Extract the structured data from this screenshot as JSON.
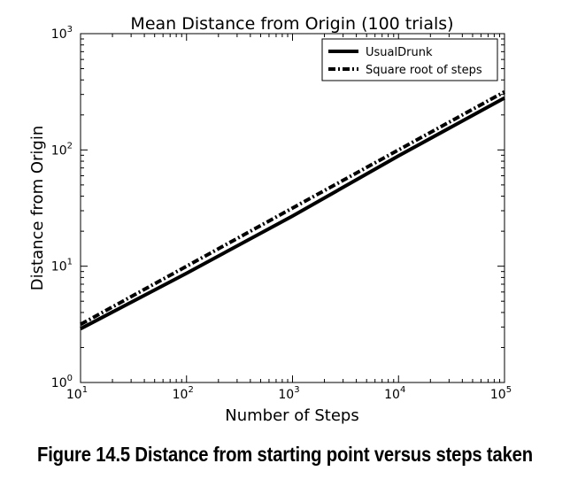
{
  "caption": "Figure 14.5 Distance from starting point versus steps taken",
  "chart_data": {
    "type": "line",
    "title": "Mean Distance from Origin (100 trials)",
    "xlabel": "Number of Steps",
    "ylabel": "Distance from Origin",
    "xscale": "log",
    "yscale": "log",
    "xlim": [
      10,
      100000
    ],
    "ylim": [
      1,
      1000
    ],
    "x_ticks": [
      {
        "base": "10",
        "exp": "1"
      },
      {
        "base": "10",
        "exp": "2"
      },
      {
        "base": "10",
        "exp": "3"
      },
      {
        "base": "10",
        "exp": "4"
      },
      {
        "base": "10",
        "exp": "5"
      }
    ],
    "y_ticks": [
      {
        "base": "10",
        "exp": "0"
      },
      {
        "base": "10",
        "exp": "1"
      },
      {
        "base": "10",
        "exp": "2"
      },
      {
        "base": "10",
        "exp": "3"
      }
    ],
    "legend_position": "top-right",
    "grid": false,
    "series": [
      {
        "name": "UsualDrunk",
        "style": "solid",
        "color": "#000000",
        "x": [
          10,
          100,
          1000,
          10000,
          100000
        ],
        "y": [
          2.9,
          8.7,
          27,
          89,
          280
        ]
      },
      {
        "name": "Square root of steps",
        "style": "dash-dot",
        "color": "#000000",
        "x": [
          10,
          100,
          1000,
          10000,
          100000
        ],
        "y": [
          3.16,
          10,
          31.6,
          100,
          316
        ]
      }
    ]
  }
}
